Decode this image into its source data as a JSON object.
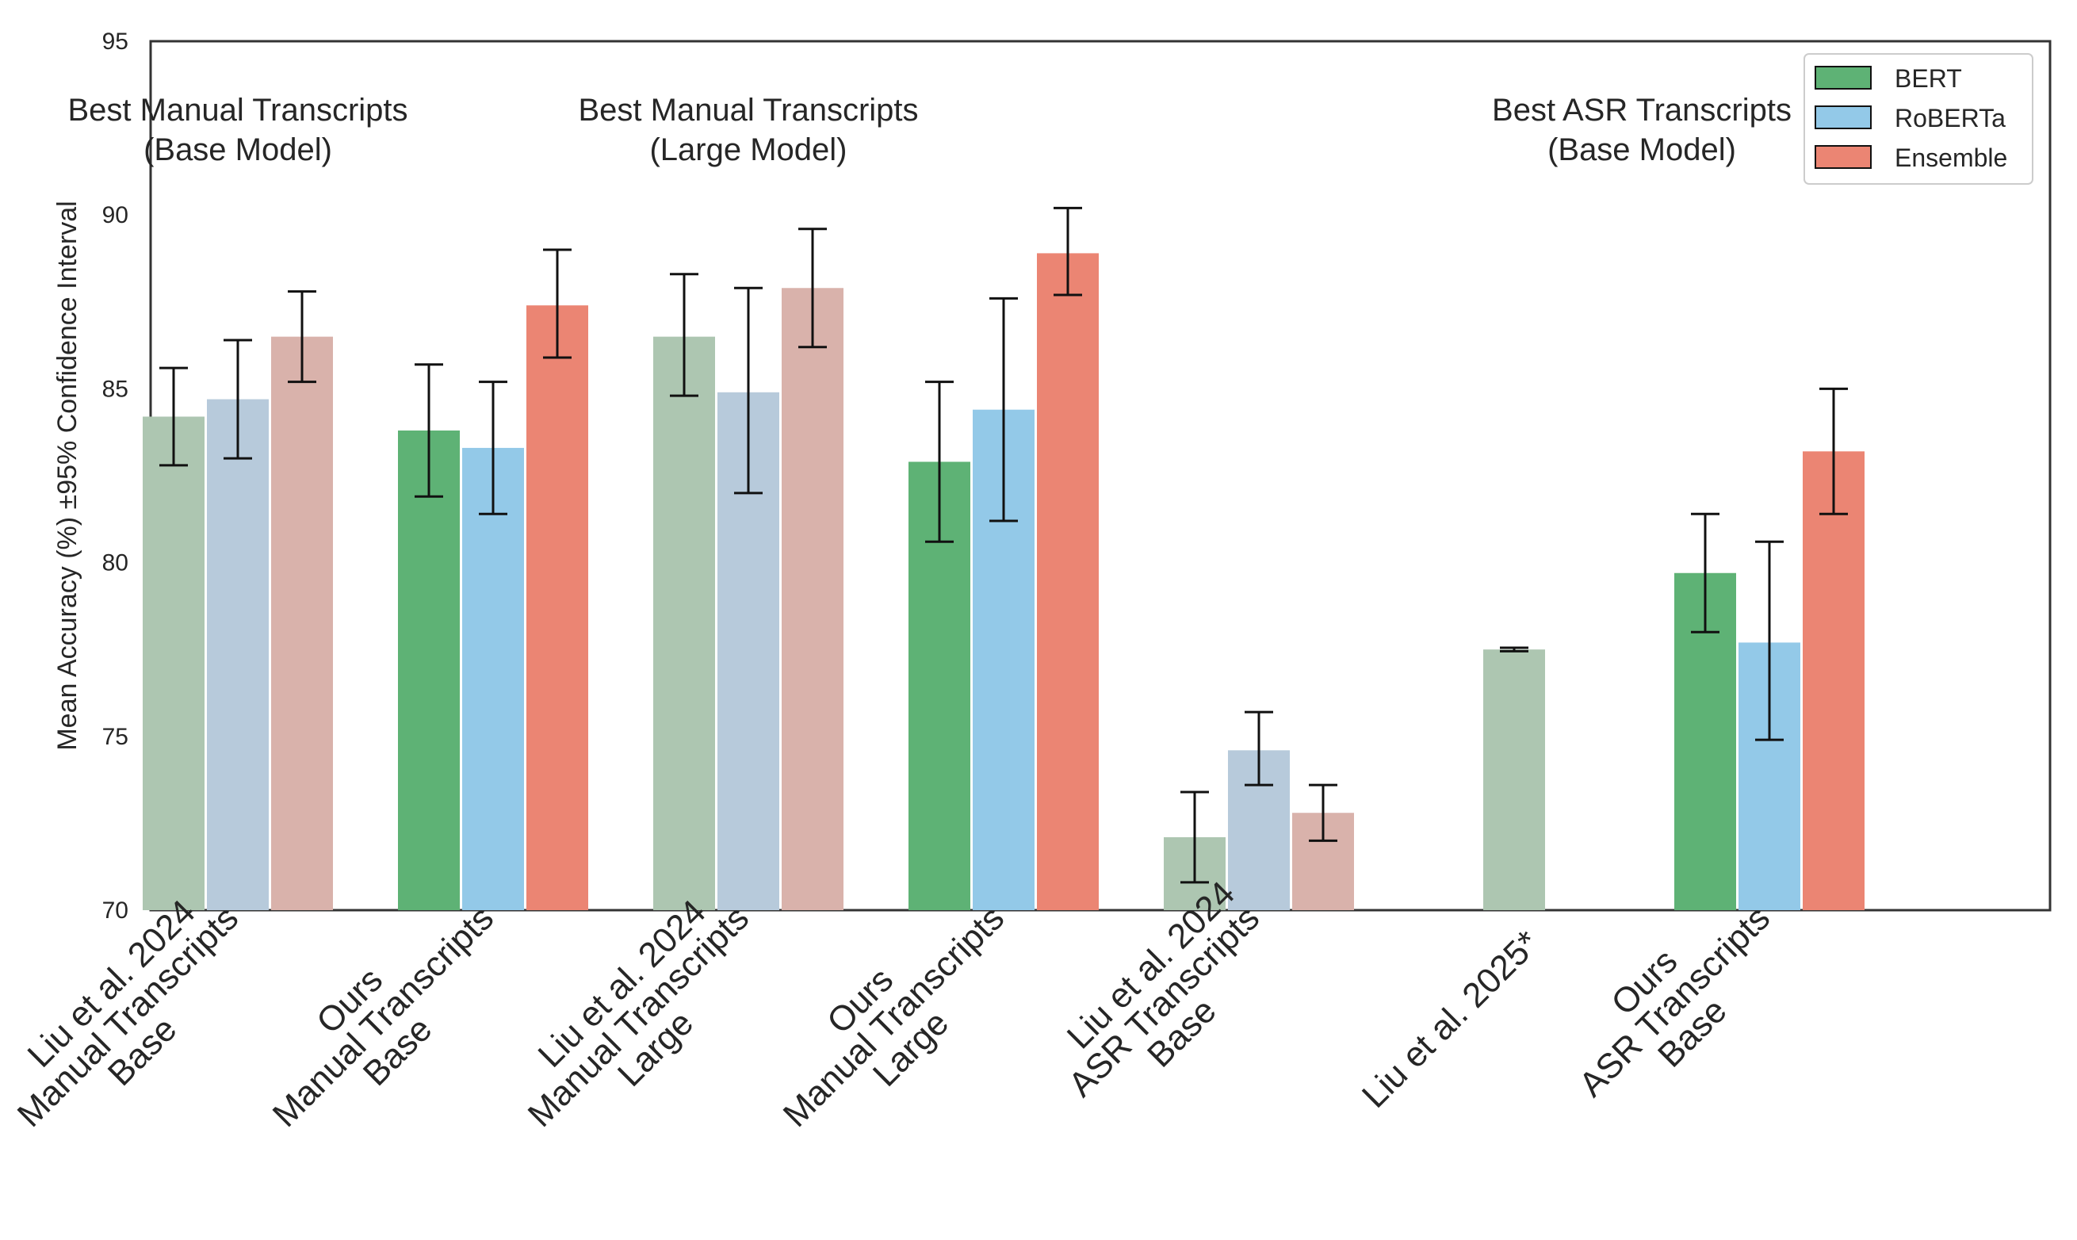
{
  "chart_data": {
    "type": "bar",
    "ylabel": "Mean Accuracy (%) ±95% Confidence Interval",
    "ylim": [
      70,
      95
    ],
    "yticks": [
      70,
      75,
      80,
      85,
      90,
      95
    ],
    "grid": false,
    "legend_position": "top-right",
    "categories": [
      [
        "Liu et al. 2024",
        "Manual Transcripts",
        "Base"
      ],
      [
        "Ours",
        "Manual Transcripts",
        "Base"
      ],
      [
        "Liu et al. 2024",
        "Manual Transcripts",
        "Large"
      ],
      [
        "Ours",
        "Manual Transcripts",
        "Large"
      ],
      [
        "Liu et al. 2024",
        "ASR Transcripts",
        "Base"
      ],
      [
        "Liu et al. 2025*"
      ],
      [
        "Ours",
        "ASR Transcripts",
        "Base"
      ]
    ],
    "faded_categories": [
      true,
      false,
      true,
      false,
      true,
      true,
      false
    ],
    "series": [
      {
        "name": "BERT",
        "color": "#5eb275",
        "faded_color": "#adc6b1",
        "values": [
          84.2,
          83.8,
          86.5,
          82.9,
          72.1,
          77.5,
          79.7
        ],
        "ci_low": [
          82.8,
          81.9,
          84.8,
          80.6,
          70.8,
          77.45,
          78.0
        ],
        "ci_high": [
          85.6,
          85.7,
          88.3,
          85.2,
          73.4,
          77.55,
          81.4
        ]
      },
      {
        "name": "RoBERTa",
        "color": "#93c9e8",
        "faded_color": "#b7cadb",
        "values": [
          84.7,
          83.3,
          84.9,
          84.4,
          74.6,
          null,
          77.7
        ],
        "ci_low": [
          83.0,
          81.4,
          82.0,
          81.2,
          73.6,
          null,
          74.9
        ],
        "ci_high": [
          86.4,
          85.2,
          87.9,
          87.6,
          75.7,
          null,
          80.6
        ]
      },
      {
        "name": "Ensemble",
        "color": "#eb8573",
        "faded_color": "#d9b2ab",
        "values": [
          86.5,
          87.4,
          87.9,
          88.9,
          72.8,
          null,
          83.2
        ],
        "ci_low": [
          85.2,
          85.9,
          86.2,
          87.7,
          72.0,
          null,
          81.4
        ],
        "ci_high": [
          87.8,
          89.0,
          89.6,
          90.2,
          73.6,
          null,
          85.0
        ]
      }
    ],
    "annotations": [
      {
        "lines": [
          "Best Manual Transcripts",
          "(Base Model)"
        ],
        "at_category": 0
      },
      {
        "lines": [
          "Best Manual Transcripts",
          "(Large Model)"
        ],
        "at_category": 2
      },
      {
        "lines": [
          "Best ASR Transcripts",
          "(Base Model)"
        ],
        "at_category": 5.5
      }
    ]
  }
}
